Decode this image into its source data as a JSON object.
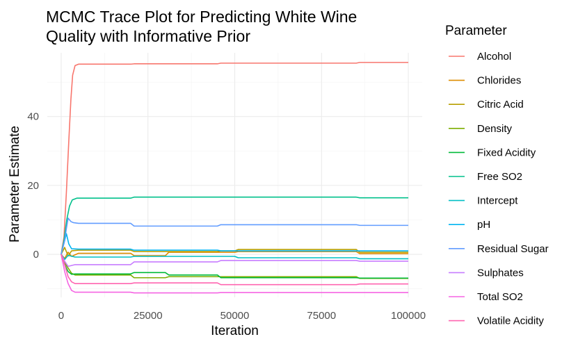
{
  "chart_data": {
    "type": "line",
    "title_lines": [
      "MCMC Trace Plot for Predicting White Wine",
      "Quality with Informative Prior"
    ],
    "xlabel": "Iteration",
    "ylabel": "Parameter Estimate",
    "xlim": [
      -4000,
      104000
    ],
    "ylim": [
      -12.5,
      58.5
    ],
    "x_ticks": [
      0,
      25000,
      50000,
      75000,
      100000
    ],
    "x_tick_labels": [
      "0",
      "25000",
      "50000",
      "75000",
      "100000"
    ],
    "x_minor_ticks": [
      12500,
      37500,
      62500,
      87500
    ],
    "y_ticks": [
      0,
      20,
      40
    ],
    "y_tick_labels": [
      "0",
      "20",
      "40"
    ],
    "y_minor_ticks": [
      -10,
      10,
      30,
      50
    ],
    "grid": true,
    "legend": {
      "title": "Parameter",
      "position": "right"
    },
    "series": [
      {
        "name": "Alcohol",
        "color": "#F8766D",
        "points": [
          [
            0,
            0
          ],
          [
            800,
            5
          ],
          [
            1500,
            18
          ],
          [
            2200,
            33
          ],
          [
            2800,
            45
          ],
          [
            3300,
            52
          ],
          [
            4000,
            54.8
          ],
          [
            5000,
            55.2
          ],
          [
            20000,
            55.2
          ],
          [
            21000,
            55.3
          ],
          [
            45000,
            55.3
          ],
          [
            46000,
            55.5
          ],
          [
            85000,
            55.5
          ],
          [
            86000,
            55.7
          ],
          [
            100000,
            55.7
          ]
        ]
      },
      {
        "name": "Chlorides",
        "color": "#DE8C00",
        "points": [
          [
            0,
            0
          ],
          [
            1000,
            -1.2
          ],
          [
            2000,
            0.6
          ],
          [
            3000,
            -0.6
          ],
          [
            5000,
            0.3
          ],
          [
            20000,
            0.3
          ],
          [
            21000,
            -0.4
          ],
          [
            30000,
            -0.4
          ],
          [
            31000,
            0.6
          ],
          [
            50000,
            0.6
          ],
          [
            51000,
            0.8
          ],
          [
            85000,
            0.8
          ],
          [
            86000,
            0.2
          ],
          [
            100000,
            0.2
          ]
        ]
      },
      {
        "name": "Citric Acid",
        "color": "#B79F00",
        "points": [
          [
            0,
            0
          ],
          [
            1000,
            2
          ],
          [
            2000,
            -0.5
          ],
          [
            3000,
            1
          ],
          [
            5000,
            1.2
          ],
          [
            20000,
            1.2
          ],
          [
            21000,
            0.8
          ],
          [
            45000,
            0.8
          ],
          [
            46000,
            1
          ],
          [
            50000,
            1
          ],
          [
            51000,
            1.4
          ],
          [
            85000,
            1.4
          ],
          [
            86000,
            0.6
          ],
          [
            100000,
            0.6
          ]
        ]
      },
      {
        "name": "Density",
        "color": "#7CAE00",
        "points": [
          [
            0,
            0
          ],
          [
            1000,
            -2.5
          ],
          [
            2000,
            -4
          ],
          [
            3000,
            -5.5
          ],
          [
            4000,
            -6
          ],
          [
            20000,
            -6
          ],
          [
            21000,
            -6.8
          ],
          [
            30000,
            -6.8
          ],
          [
            31000,
            -6.5
          ],
          [
            85000,
            -6.5
          ],
          [
            86000,
            -7
          ],
          [
            100000,
            -7
          ]
        ]
      },
      {
        "name": "Fixed Acidity",
        "color": "#00BA38",
        "points": [
          [
            0,
            0
          ],
          [
            1000,
            -3
          ],
          [
            2000,
            -5
          ],
          [
            3000,
            -5.8
          ],
          [
            4000,
            -5.7
          ],
          [
            20000,
            -5.7
          ],
          [
            21000,
            -5.3
          ],
          [
            30000,
            -5.3
          ],
          [
            31000,
            -6
          ],
          [
            45000,
            -6
          ],
          [
            46000,
            -6.8
          ],
          [
            85000,
            -6.8
          ],
          [
            86000,
            -6.9
          ],
          [
            100000,
            -6.9
          ]
        ]
      },
      {
        "name": "Free SO2",
        "color": "#00C08B",
        "points": [
          [
            0,
            0
          ],
          [
            800,
            4
          ],
          [
            1600,
            10
          ],
          [
            2400,
            14
          ],
          [
            3200,
            15.8
          ],
          [
            4500,
            16.3
          ],
          [
            20000,
            16.3
          ],
          [
            21000,
            16.6
          ],
          [
            85000,
            16.6
          ],
          [
            86000,
            16.4
          ],
          [
            100000,
            16.4
          ]
        ]
      },
      {
        "name": "Intercept",
        "color": "#00BFC4",
        "points": [
          [
            0,
            0
          ],
          [
            1000,
            -1.5
          ],
          [
            2000,
            -0.3
          ],
          [
            4000,
            -0.8
          ],
          [
            20000,
            -0.8
          ],
          [
            21000,
            -0.6
          ],
          [
            50000,
            -0.6
          ],
          [
            51000,
            -1
          ],
          [
            85000,
            -1
          ],
          [
            86000,
            -1.3
          ],
          [
            100000,
            -1.3
          ]
        ]
      },
      {
        "name": "pH",
        "color": "#00B4F0",
        "points": [
          [
            0,
            0
          ],
          [
            1000,
            4
          ],
          [
            1500,
            6
          ],
          [
            2200,
            3
          ],
          [
            3000,
            1.6
          ],
          [
            5000,
            1.5
          ],
          [
            20000,
            1.5
          ],
          [
            21000,
            1.2
          ],
          [
            45000,
            1.2
          ],
          [
            46000,
            1
          ],
          [
            100000,
            1
          ]
        ]
      },
      {
        "name": "Residual Sugar",
        "color": "#619CFF",
        "points": [
          [
            0,
            0
          ],
          [
            1000,
            4
          ],
          [
            1500,
            7.5
          ],
          [
            2000,
            10.5
          ],
          [
            2800,
            9.5
          ],
          [
            3500,
            9.2
          ],
          [
            5000,
            9
          ],
          [
            20000,
            9
          ],
          [
            21000,
            8.2
          ],
          [
            45000,
            8.2
          ],
          [
            46000,
            8.6
          ],
          [
            85000,
            8.6
          ],
          [
            86000,
            8.4
          ],
          [
            100000,
            8.4
          ]
        ]
      },
      {
        "name": "Sulphates",
        "color": "#C77CFF",
        "points": [
          [
            0,
            0
          ],
          [
            1000,
            -2
          ],
          [
            2000,
            -3.5
          ],
          [
            4000,
            -3
          ],
          [
            20000,
            -3
          ],
          [
            21000,
            -2.2
          ],
          [
            45000,
            -2.2
          ],
          [
            46000,
            -1.8
          ],
          [
            85000,
            -1.8
          ],
          [
            86000,
            -2
          ],
          [
            100000,
            -2
          ]
        ]
      },
      {
        "name": "Total SO2",
        "color": "#F564E3",
        "points": [
          [
            0,
            0
          ],
          [
            1000,
            -5
          ],
          [
            2000,
            -8.5
          ],
          [
            3000,
            -10.5
          ],
          [
            4000,
            -11
          ],
          [
            20000,
            -11
          ],
          [
            21000,
            -11.2
          ],
          [
            45000,
            -11.2
          ],
          [
            46000,
            -11.1
          ],
          [
            100000,
            -11.1
          ]
        ]
      },
      {
        "name": "Volatile Acidity",
        "color": "#FF64B0",
        "points": [
          [
            0,
            0
          ],
          [
            1000,
            -3
          ],
          [
            2000,
            -6.5
          ],
          [
            3000,
            -8
          ],
          [
            4000,
            -8.5
          ],
          [
            20000,
            -8.5
          ],
          [
            21000,
            -8.3
          ],
          [
            45000,
            -8.3
          ],
          [
            46000,
            -8.8
          ],
          [
            85000,
            -8.8
          ],
          [
            86000,
            -8.6
          ],
          [
            100000,
            -8.6
          ]
        ]
      }
    ]
  }
}
